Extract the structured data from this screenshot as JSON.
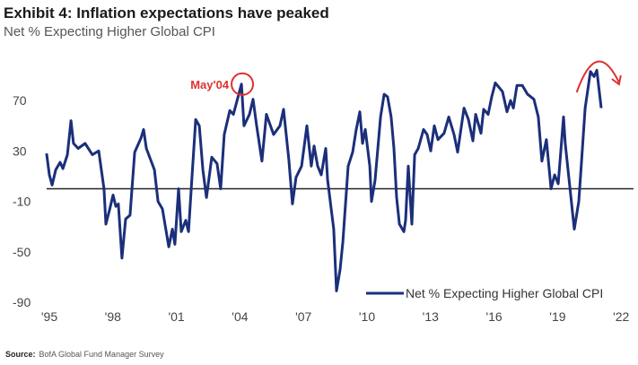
{
  "chart_data": {
    "type": "line",
    "title": "Exhibit 4: Inflation expectations have peaked",
    "subtitle": "Net % Expecting Higher Global CPI",
    "xlabel": "",
    "ylabel": "",
    "xlim": [
      1995,
      2022
    ],
    "ylim": [
      -90,
      90
    ],
    "y_ticks": [
      70,
      30,
      -10,
      -50,
      -90
    ],
    "y_tick_labels": [
      "70",
      "30",
      "-10",
      "-50",
      "-90"
    ],
    "x_ticks": [
      1995,
      1998,
      2001,
      2004,
      2007,
      2010,
      2013,
      2016,
      2019,
      2022
    ],
    "x_tick_labels": [
      "'95",
      "'98",
      "'01",
      "'04",
      "'07",
      "'10",
      "'13",
      "'16",
      "'19",
      "'22"
    ],
    "reference_line": 0,
    "grid": false,
    "legend": {
      "position": "bottom-right",
      "entries": [
        "Net % Expecting Higher Global CPI"
      ]
    },
    "series": [
      {
        "name": "Net % Expecting Higher Global CPI",
        "color": "#1b2f7a",
        "x": [
          1994.87,
          1995.0,
          1995.13,
          1995.3,
          1995.51,
          1995.64,
          1995.85,
          1996.02,
          1996.14,
          1996.36,
          1996.69,
          1997.03,
          1997.33,
          1997.58,
          1997.67,
          1997.84,
          1998.01,
          1998.14,
          1998.26,
          1998.43,
          1998.6,
          1998.81,
          1999.03,
          1999.32,
          1999.45,
          1999.58,
          1999.96,
          2000.13,
          2000.34,
          2000.64,
          2000.81,
          2000.93,
          2001.1,
          2001.23,
          2001.44,
          2001.57,
          2001.74,
          2001.91,
          2002.08,
          2002.25,
          2002.42,
          2002.67,
          2002.92,
          2003.09,
          2003.26,
          2003.52,
          2003.69,
          2004.07,
          2004.19,
          2004.45,
          2004.62,
          2004.79,
          2005.04,
          2005.25,
          2005.59,
          2005.89,
          2006.06,
          2006.31,
          2006.48,
          2006.65,
          2006.91,
          2007.16,
          2007.37,
          2007.5,
          2007.67,
          2007.84,
          2008.05,
          2008.14,
          2008.43,
          2008.56,
          2008.73,
          2008.86,
          2009.11,
          2009.32,
          2009.49,
          2009.66,
          2009.79,
          2009.92,
          2010.13,
          2010.21,
          2010.38,
          2010.64,
          2010.81,
          2010.97,
          2011.14,
          2011.27,
          2011.4,
          2011.53,
          2011.74,
          2011.82,
          2011.95,
          2012.12,
          2012.25,
          2012.42,
          2012.67,
          2012.84,
          2013.01,
          2013.18,
          2013.35,
          2013.64,
          2013.86,
          2014.11,
          2014.28,
          2014.58,
          2014.79,
          2015.0,
          2015.13,
          2015.38,
          2015.51,
          2015.72,
          2015.89,
          2016.06,
          2016.4,
          2016.61,
          2016.78,
          2016.91,
          2017.08,
          2017.33,
          2017.58,
          2017.88,
          2018.09,
          2018.26,
          2018.47,
          2018.69,
          2018.86,
          2019.03,
          2019.28,
          2019.36,
          2019.79,
          2020.0,
          2020.13,
          2020.3,
          2020.55,
          2020.72,
          2020.85,
          2021.06
        ],
        "values": [
          28,
          11,
          3,
          15,
          21,
          16,
          27,
          54,
          36,
          32,
          36,
          27,
          30,
          0,
          -28,
          -17,
          -5,
          -14,
          -12,
          -55,
          -24,
          -21,
          29,
          40,
          47,
          32,
          15,
          -10,
          -16,
          -46,
          -32,
          -44,
          0,
          -34,
          -25,
          -34,
          11,
          55,
          50,
          15,
          -7,
          25,
          20,
          0,
          43,
          62,
          59,
          83,
          50,
          59,
          71,
          50,
          22,
          59,
          43,
          50,
          63,
          23,
          -12,
          9,
          18,
          50,
          18,
          34,
          18,
          11,
          32,
          7,
          -32,
          -81,
          -64,
          -42,
          18,
          29,
          47,
          61,
          36,
          47,
          18,
          -10,
          7,
          57,
          75,
          73,
          57,
          32,
          -7,
          -28,
          -34,
          -25,
          18,
          -28,
          27,
          32,
          47,
          43,
          30,
          50,
          39,
          44,
          57,
          43,
          29,
          64,
          55,
          38,
          59,
          44,
          63,
          59,
          73,
          84,
          77,
          61,
          70,
          64,
          82,
          82,
          75,
          71,
          57,
          22,
          39,
          0,
          11,
          4,
          57,
          36,
          -32,
          -10,
          22,
          64,
          93,
          89,
          94,
          64
        ]
      }
    ],
    "annotations": [
      {
        "text": "May'04",
        "color": "#e03030",
        "x": 2004.07,
        "y": 83,
        "shape": "circle"
      },
      {
        "text": "",
        "color": "#e03030",
        "shape": "arrow-arc",
        "x": [
          2019.9,
          2020.85,
          2021.9
        ]
      }
    ]
  },
  "source": {
    "label": "Source:",
    "text": "BofA Global Fund Manager Survey"
  }
}
